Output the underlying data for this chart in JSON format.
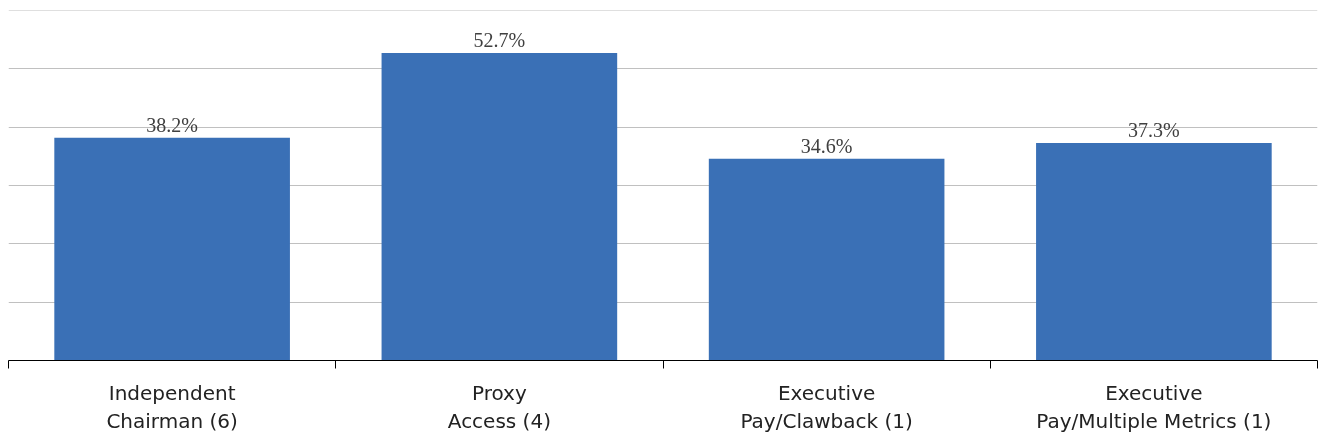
{
  "chart_data": {
    "type": "bar",
    "categories": [
      "Independent Chairman (6)",
      "Proxy Access (4)",
      "Executive Pay/Clawback (1)",
      "Executive Pay/Multiple Metrics (1)"
    ],
    "values": [
      38.2,
      52.7,
      34.6,
      37.3
    ],
    "value_labels": [
      "38.2%",
      "52.7%",
      "34.6%",
      "37.3%"
    ],
    "color": "#3a70b6",
    "ylim": [
      0,
      60
    ],
    "yticks": [
      {
        "value": 0,
        "label": null
      },
      {
        "value": 10,
        "label": null
      },
      {
        "value": 20,
        "label": null
      },
      {
        "value": 30,
        "label": null
      },
      {
        "value": 40,
        "label": null
      },
      {
        "value": 50,
        "label": null
      },
      {
        "value": 60,
        "label": null
      }
    ],
    "grid": "y",
    "tick_labels": "x"
  }
}
